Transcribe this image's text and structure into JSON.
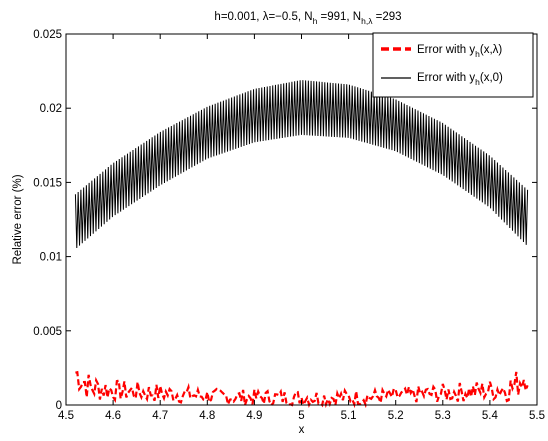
{
  "chart_data": {
    "type": "line",
    "title": {
      "prefix": "h=0.001,  λ=−0.5, N",
      "sub1": "h",
      "mid": " =991,  N",
      "sub2": "h,λ",
      "suffix": " =293"
    },
    "xlabel": "x",
    "ylabel": "Relative error (%)",
    "xlim": [
      4.5,
      5.5
    ],
    "ylim": [
      0,
      0.025
    ],
    "xticks": [
      "4.5",
      "4.6",
      "4.7",
      "4.8",
      "4.9",
      "5",
      "5.1",
      "5.2",
      "5.3",
      "5.4",
      "5.5"
    ],
    "yticks": [
      "0",
      "0.005",
      "0.01",
      "0.015",
      "0.02",
      "0.025"
    ],
    "grid": false,
    "legend_position": "top-right",
    "series": [
      {
        "name": "Error with y_h(x,λ)",
        "legend_main": "Error with y",
        "legend_sub": "h",
        "legend_tail": "(x,λ)",
        "color": "#ff0000",
        "style": "dashed",
        "x_range": [
          4.52,
          5.48
        ],
        "points": [
          [
            4.52,
            0.0022
          ],
          [
            4.55,
            0.0012
          ],
          [
            4.6,
            0.001
          ],
          [
            4.65,
            0.0009
          ],
          [
            4.7,
            0.0008
          ],
          [
            4.75,
            0.0007
          ],
          [
            4.8,
            0.0006
          ],
          [
            4.85,
            0.00055
          ],
          [
            4.9,
            0.0005
          ],
          [
            4.95,
            0.0005
          ],
          [
            5.0,
            0.0005
          ],
          [
            5.05,
            0.0005
          ],
          [
            5.1,
            0.0005
          ],
          [
            5.15,
            0.00055
          ],
          [
            5.2,
            0.0006
          ],
          [
            5.25,
            0.0007
          ],
          [
            5.3,
            0.0008
          ],
          [
            5.35,
            0.0009
          ],
          [
            5.4,
            0.001
          ],
          [
            5.45,
            0.0012
          ],
          [
            5.48,
            0.0022
          ]
        ],
        "spread": [
          [
            4.52,
            0.0013
          ],
          [
            4.6,
            0.0008
          ],
          [
            4.8,
            0.0006
          ],
          [
            5.0,
            0.0006
          ],
          [
            5.2,
            0.0006
          ],
          [
            5.4,
            0.0008
          ],
          [
            5.48,
            0.0013
          ]
        ]
      },
      {
        "name": "Error with y_h(x,0)",
        "legend_main": "Error with y",
        "legend_sub": "h",
        "legend_tail": "(x,0)",
        "color": "#000000",
        "style": "solid",
        "x_range": [
          4.52,
          5.48
        ],
        "upper": [
          [
            4.52,
            0.0142
          ],
          [
            4.6,
            0.0163
          ],
          [
            4.7,
            0.0184
          ],
          [
            4.8,
            0.0201
          ],
          [
            4.9,
            0.0213
          ],
          [
            5.0,
            0.0219
          ],
          [
            5.1,
            0.0216
          ],
          [
            5.2,
            0.0206
          ],
          [
            5.3,
            0.019
          ],
          [
            5.4,
            0.0168
          ],
          [
            5.48,
            0.0145
          ]
        ],
        "lower": [
          [
            4.52,
            0.0105
          ],
          [
            4.6,
            0.0127
          ],
          [
            4.7,
            0.0148
          ],
          [
            4.8,
            0.0166
          ],
          [
            4.9,
            0.0177
          ],
          [
            5.0,
            0.0182
          ],
          [
            5.1,
            0.018
          ],
          [
            5.2,
            0.0171
          ],
          [
            5.3,
            0.0155
          ],
          [
            5.4,
            0.0133
          ],
          [
            5.48,
            0.0107
          ]
        ]
      }
    ]
  }
}
